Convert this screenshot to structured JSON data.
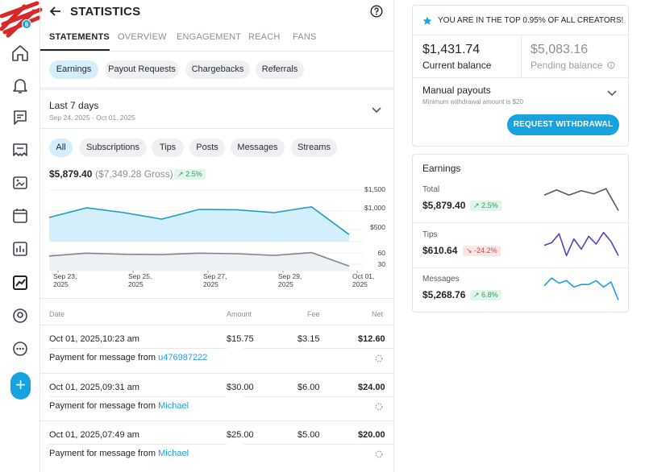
{
  "header": {
    "title": "STATISTICS"
  },
  "tabs": [
    "STATEMENTS",
    "OVERVIEW",
    "ENGAGEMENT",
    "REACH",
    "FANS"
  ],
  "sidebar": {
    "home_badge": "6"
  },
  "sub_tabs": [
    "Earnings",
    "Payout Requests",
    "Chargebacks",
    "Referrals"
  ],
  "period": {
    "label": "Last 7 days",
    "range": "Sep 24, 2025 - Oct 01, 2025"
  },
  "filters": [
    "All",
    "Subscriptions",
    "Tips",
    "Posts",
    "Messages",
    "Streams"
  ],
  "summary": {
    "net": "$5,879.40",
    "gross": "($7,349.28 Gross)",
    "change": "2.5%"
  },
  "chart_data": {
    "type": "line",
    "x": [
      "Sep 23, 2025",
      "Sep 25, 2025",
      "Sep 27, 2025",
      "Sep 29, 2025",
      "Oct 01, 2025"
    ],
    "x_tick_lines": [
      [
        "Sep 23,",
        "2025"
      ],
      [
        "Sep 25,",
        "2025"
      ],
      [
        "Sep 27,",
        "2025"
      ],
      [
        "Sep 29,",
        "2025"
      ],
      [
        "Oct 01,",
        "2025"
      ]
    ],
    "upper": {
      "type": "area",
      "y_ticks": [
        "$1,500",
        "$1,000",
        "$500"
      ],
      "ylim": [
        0,
        1600
      ],
      "values": [
        750,
        1050,
        900,
        700,
        1000,
        990,
        900,
        1080,
        220
      ]
    },
    "lower": {
      "type": "line",
      "y_ticks": [
        "60",
        "30"
      ],
      "ylim": [
        0,
        80
      ],
      "values": [
        52,
        62,
        58,
        57,
        62,
        60,
        54,
        64,
        16
      ]
    }
  },
  "table": {
    "headers": {
      "date": "Date",
      "amount": "Amount",
      "fee": "Fee",
      "net": "Net"
    },
    "rows": [
      {
        "date": "Oct 01, 2025,10:23 am",
        "amount": "$15.75",
        "fee": "$3.15",
        "net": "$12.60",
        "desc": "Payment for message from",
        "user": "u476987222"
      },
      {
        "date": "Oct 01, 2025,09:31 am",
        "amount": "$30.00",
        "fee": "$6.00",
        "net": "$24.00",
        "desc": "Payment for message from",
        "user": "Michael"
      },
      {
        "date": "Oct 01, 2025,07:49 am",
        "amount": "$25.00",
        "fee": "$5.00",
        "net": "$20.00",
        "desc": "Payment for message from",
        "user": "Michael"
      }
    ]
  },
  "top_creator": {
    "text": "YOU ARE IN THE TOP 0.95% OF ALL CREATORS!"
  },
  "balance": {
    "current_value": "$1,431.74",
    "current_label": "Current balance",
    "pending_value": "$5,083.16",
    "pending_label": "Pending balance",
    "payout_title": "Manual payouts",
    "payout_note": "Minimum withdrawal amount is $20",
    "withdraw_label": "REQUEST WITHDRAWAL"
  },
  "earnings_panel": {
    "title": "Earnings",
    "items": [
      {
        "label": "Total",
        "value": "$5,879.40",
        "change": "2.5%",
        "dir": "up",
        "color": "#555b64",
        "spark": [
          0.35,
          0.15,
          0.35,
          0.18,
          0.3,
          0.1,
          0.95
        ]
      },
      {
        "label": "Tips",
        "value": "$610.64",
        "change": "-24.2%",
        "dir": "down",
        "color": "#5b3fb8",
        "spark": [
          0.55,
          0.45,
          0.1,
          0.95,
          0.3,
          0.7,
          0.2,
          0.5,
          0.05,
          0.4,
          0.95
        ]
      },
      {
        "label": "Messages",
        "value": "$5,268.76",
        "change": "6.8%",
        "dir": "up",
        "color": "#1d9fe0",
        "spark": [
          0.4,
          0.1,
          0.3,
          0.2,
          0.45,
          0.35,
          0.35,
          0.2,
          0.45,
          0.25,
          0.95
        ]
      }
    ]
  },
  "colors": {
    "accent": "#17a2e0",
    "chart_area": "#d3effb",
    "chart_line": "#1d9fc4",
    "chart_lower": "#7d8794"
  }
}
